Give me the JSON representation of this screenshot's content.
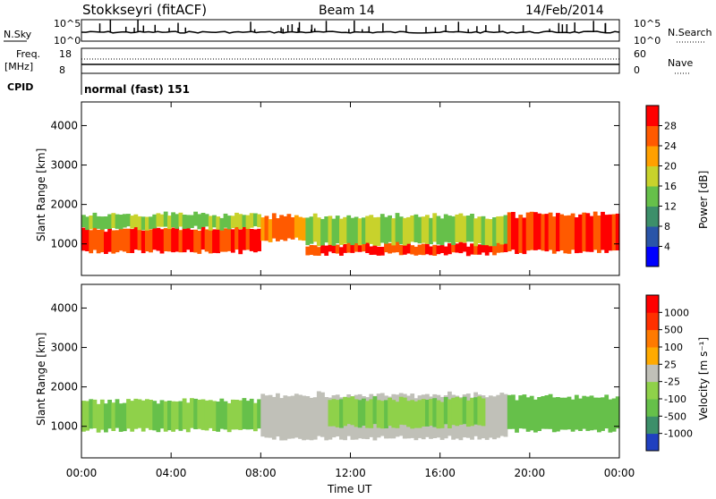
{
  "header": {
    "station": "Stokkseyri (fitACF)",
    "beam": "Beam 14",
    "date": "14/Feb/2014"
  },
  "top_panels": {
    "nsky_label": "N.Sky",
    "nsearch_label": "N.Search",
    "freq_label_1": "Freq.",
    "freq_label_2": "[MHz]",
    "nave_label": "Nave",
    "cpid_label": "CPID",
    "cpid_value": "normal (fast) 151",
    "noise_ticks_left": [
      "10^5",
      "10^0"
    ],
    "noise_ticks_right": [
      "10^5",
      "10^0"
    ],
    "freq_ticks_left": [
      "18",
      "8"
    ],
    "nave_ticks_right": [
      "60",
      "0"
    ]
  },
  "axes": {
    "ylabel": "Slant Range [km]",
    "xlabel": "Time UT",
    "yticks": [
      "4000",
      "3000",
      "2000",
      "1000"
    ],
    "xticks": [
      "00:00",
      "04:00",
      "08:00",
      "12:00",
      "16:00",
      "20:00",
      "00:00"
    ]
  },
  "power_scale": {
    "label": "Power [dB]",
    "ticks": [
      "28",
      "24",
      "20",
      "16",
      "12",
      "8",
      "4"
    ],
    "colors": [
      "#0000ff",
      "#2a55a8",
      "#3d8f6a",
      "#66c04a",
      "#c8d22c",
      "#ffa000",
      "#ff5a00",
      "#ff0000"
    ]
  },
  "velocity_scale": {
    "label": "Velocity [m s⁻¹]",
    "ticks": [
      "1000",
      "500",
      "100",
      "25",
      "-25",
      "-100",
      "-500",
      "-1000"
    ],
    "colors": [
      "#2040c0",
      "#3d8f6a",
      "#66c04a",
      "#8fd14a",
      "#c0c0b8",
      "#ffaa00",
      "#ff7a00",
      "#ff3000",
      "#ff0000"
    ]
  },
  "chart_data": [
    {
      "type": "heatmap",
      "title": "Power",
      "xlabel": "Time UT",
      "ylabel": "Slant Range [km]",
      "xlim": [
        0,
        24
      ],
      "ylim": [
        200,
        4600
      ],
      "colorbar_label": "Power [dB]",
      "colorbar_range": [
        0,
        32
      ],
      "bands": [
        {
          "t_start": 0,
          "t_end": 8,
          "range_low": 800,
          "range_high": 1400,
          "value": 28
        },
        {
          "t_start": 0,
          "t_end": 8,
          "range_low": 1400,
          "range_high": 1750,
          "value": 16
        },
        {
          "t_start": 8,
          "t_end": 10,
          "range_low": 1100,
          "range_high": 1700,
          "value": 24
        },
        {
          "t_start": 10,
          "t_end": 19,
          "range_low": 750,
          "range_high": 1000,
          "value": 28
        },
        {
          "t_start": 10,
          "t_end": 19,
          "range_low": 1000,
          "range_high": 1700,
          "value": 16
        },
        {
          "t_start": 19,
          "t_end": 24,
          "range_low": 800,
          "range_high": 1750,
          "value": 28
        }
      ]
    },
    {
      "type": "heatmap",
      "title": "Velocity",
      "xlabel": "Time UT",
      "ylabel": "Slant Range [km]",
      "xlim": [
        0,
        24
      ],
      "ylim": [
        200,
        4600
      ],
      "colorbar_label": "Velocity [m s⁻¹]",
      "colorbar_range": [
        -1000,
        1000
      ],
      "bands": [
        {
          "t_start": 0,
          "t_end": 8,
          "range_low": 900,
          "range_high": 1650,
          "value": -300
        },
        {
          "t_start": 8,
          "t_end": 19,
          "range_low": 700,
          "range_high": 1800,
          "value": 0
        },
        {
          "t_start": 11,
          "t_end": 18,
          "range_low": 1000,
          "range_high": 1700,
          "value": -300
        },
        {
          "t_start": 19,
          "t_end": 24,
          "range_low": 900,
          "range_high": 1750,
          "value": -400
        }
      ]
    }
  ]
}
